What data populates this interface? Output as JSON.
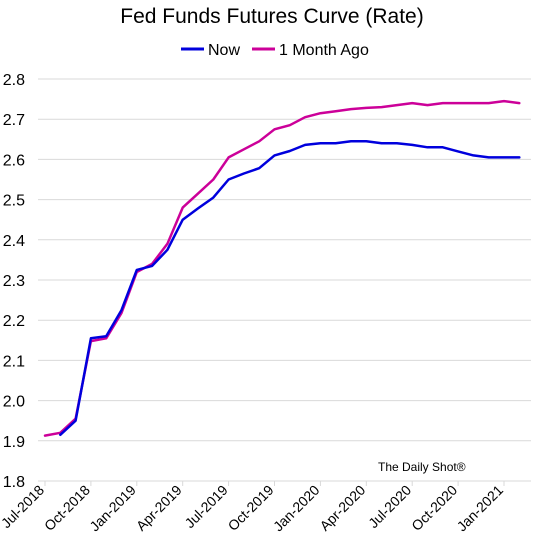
{
  "chart_data": {
    "type": "line",
    "title": "Fed Funds Futures Curve (Rate)",
    "xlabel": "",
    "ylabel": "",
    "ylim": [
      1.8,
      2.8
    ],
    "yticks": [
      "1.8",
      "1.9",
      "2.0",
      "2.1",
      "2.2",
      "2.3",
      "2.4",
      "2.5",
      "2.6",
      "2.7",
      "2.8"
    ],
    "xticks": [
      "Jul-2018",
      "Oct-2018",
      "Jan-2019",
      "Apr-2019",
      "Jul-2019",
      "Oct-2019",
      "Jan-2020",
      "Apr-2020",
      "Jul-2020",
      "Oct-2020",
      "Jan-2021"
    ],
    "grid": "horizontal",
    "legend_position": "top",
    "watermark": "The Daily Shot®",
    "series": [
      {
        "name": "Now",
        "color": "#0000dd",
        "x": [
          "Aug-2018",
          "Sep-2018",
          "Oct-2018",
          "Nov-2018",
          "Dec-2018",
          "Jan-2019",
          "Feb-2019",
          "Mar-2019",
          "Apr-2019",
          "May-2019",
          "Jun-2019",
          "Jul-2019",
          "Aug-2019",
          "Sep-2019",
          "Oct-2019",
          "Nov-2019",
          "Dec-2019",
          "Jan-2020",
          "Feb-2020",
          "Mar-2020",
          "Apr-2020",
          "May-2020",
          "Jun-2020",
          "Jul-2020",
          "Aug-2020",
          "Sep-2020",
          "Oct-2020",
          "Nov-2020",
          "Dec-2020",
          "Jan-2021",
          "Feb-2021"
        ],
        "values": [
          1.915,
          1.95,
          2.155,
          2.16,
          2.225,
          2.325,
          2.335,
          2.375,
          2.45,
          2.478,
          2.505,
          2.55,
          2.565,
          2.578,
          2.61,
          2.621,
          2.636,
          2.64,
          2.64,
          2.645,
          2.645,
          2.64,
          2.64,
          2.636,
          2.63,
          2.63,
          2.62,
          2.61,
          2.605,
          2.605,
          2.605
        ]
      },
      {
        "name": "1 Month Ago",
        "color": "#cc0099",
        "x": [
          "Jul-2018",
          "Aug-2018",
          "Sep-2018",
          "Oct-2018",
          "Nov-2018",
          "Dec-2018",
          "Jan-2019",
          "Feb-2019",
          "Mar-2019",
          "Apr-2019",
          "May-2019",
          "Jun-2019",
          "Jul-2019",
          "Aug-2019",
          "Sep-2019",
          "Oct-2019",
          "Nov-2019",
          "Dec-2019",
          "Jan-2020",
          "Feb-2020",
          "Mar-2020",
          "Apr-2020",
          "May-2020",
          "Jun-2020",
          "Jul-2020",
          "Aug-2020",
          "Sep-2020",
          "Oct-2020",
          "Nov-2020",
          "Dec-2020",
          "Jan-2021",
          "Feb-2021"
        ],
        "values": [
          1.913,
          1.92,
          1.955,
          2.148,
          2.155,
          2.218,
          2.32,
          2.34,
          2.39,
          2.48,
          2.515,
          2.55,
          2.605,
          2.625,
          2.645,
          2.675,
          2.685,
          2.705,
          2.715,
          2.72,
          2.725,
          2.728,
          2.73,
          2.735,
          2.74,
          2.735,
          2.74,
          2.74,
          2.74,
          2.74,
          2.745,
          2.74
        ]
      }
    ]
  }
}
